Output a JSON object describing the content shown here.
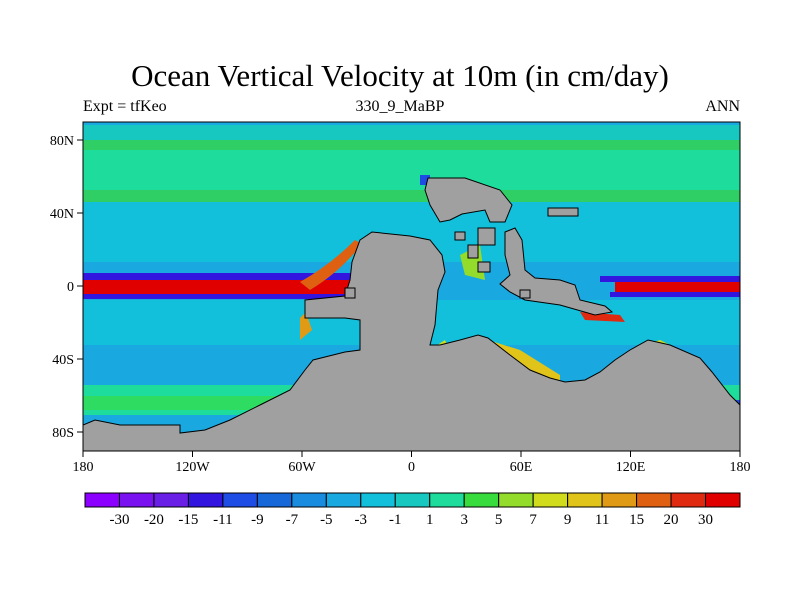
{
  "title": "Ocean Vertical Velocity at 10m (in cm/day)",
  "left_string": "Expt = tfKeo",
  "center_string": "330_9_MaBP",
  "right_string": "ANN",
  "axes": {
    "x_ticks": [
      "180",
      "120W",
      "60W",
      "0",
      "60E",
      "120E",
      "180"
    ],
    "y_ticks": [
      "80N",
      "40N",
      "0",
      "40S",
      "80S"
    ]
  },
  "colorbar": {
    "labels": [
      "-30",
      "-20",
      "-15",
      "-11",
      "-9",
      "-7",
      "-5",
      "-3",
      "-1",
      "1",
      "3",
      "5",
      "7",
      "9",
      "11",
      "15",
      "20",
      "30"
    ],
    "colors": [
      "#8c00ff",
      "#7a12f0",
      "#6a1fe6",
      "#3216e0",
      "#1e4de6",
      "#1668d8",
      "#1a8ce0",
      "#1aa8e0",
      "#12c0dc",
      "#16c8c0",
      "#1edc9c",
      "#38dc3c",
      "#94dc2c",
      "#d0dc1c",
      "#e0c41a",
      "#e09a16",
      "#e06012",
      "#e02a10",
      "#e00000"
    ]
  }
}
